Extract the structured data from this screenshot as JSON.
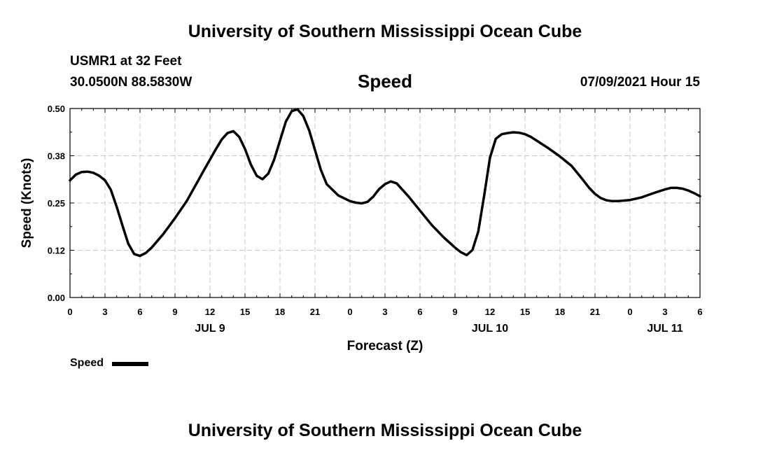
{
  "header": {
    "title_top": "University of Southern Mississippi Ocean Cube",
    "station": "USMR1 at 32 Feet",
    "coords": "30.0500N  88.5830W",
    "variable": "Speed",
    "run_time": "07/09/2021 Hour 15",
    "title_bottom": "University of Southern Mississippi Ocean Cube"
  },
  "legend": {
    "label": "Speed",
    "color": "#000000"
  },
  "chart_data": {
    "type": "line",
    "title": "Speed",
    "xlabel": "Forecast (Z)",
    "ylabel": "Speed (Knots)",
    "ylim": [
      0,
      0.5
    ],
    "xlim": [
      0,
      54
    ],
    "grid": true,
    "y_ticks": [
      "0.00",
      "0.12",
      "0.25",
      "0.38",
      "0.50"
    ],
    "x_ticks": [
      "0",
      "3",
      "6",
      "9",
      "12",
      "15",
      "18",
      "21",
      "0",
      "3",
      "6",
      "9",
      "12",
      "15",
      "18",
      "21",
      "0",
      "3",
      "6"
    ],
    "date_labels": [
      {
        "label": "JUL 9",
        "x": 12
      },
      {
        "label": "JUL 10",
        "x": 36
      },
      {
        "label": "JUL 11",
        "x": 51
      }
    ],
    "series": [
      {
        "name": "Speed",
        "color": "#000000",
        "x": [
          0,
          0.5,
          1,
          1.5,
          2,
          2.5,
          3,
          3.5,
          4,
          4.5,
          5,
          5.5,
          6,
          6.5,
          7,
          8,
          9,
          10,
          11,
          11.5,
          12,
          12.5,
          13,
          13.5,
          14,
          14.5,
          15,
          15.5,
          16,
          16.5,
          17,
          17.5,
          18,
          18.5,
          19,
          19.5,
          20,
          20.5,
          21,
          21.5,
          22,
          23,
          24,
          24.5,
          25,
          25.5,
          26,
          26.5,
          27,
          27.5,
          28,
          29,
          30,
          31,
          32,
          33,
          33.5,
          34,
          34.5,
          35,
          35.5,
          36,
          36.5,
          37,
          37.5,
          38,
          38.5,
          39,
          39.5,
          40,
          41,
          42,
          43,
          44,
          44.5,
          45,
          45.5,
          46,
          46.5,
          47,
          48,
          49,
          50,
          51,
          51.5,
          52,
          52.5,
          53,
          53.5,
          54
        ],
        "values": [
          0.31,
          0.325,
          0.332,
          0.333,
          0.33,
          0.322,
          0.31,
          0.285,
          0.24,
          0.19,
          0.142,
          0.115,
          0.11,
          0.118,
          0.132,
          0.168,
          0.21,
          0.255,
          0.31,
          0.338,
          0.365,
          0.392,
          0.418,
          0.435,
          0.44,
          0.425,
          0.393,
          0.352,
          0.322,
          0.313,
          0.328,
          0.365,
          0.415,
          0.465,
          0.493,
          0.498,
          0.48,
          0.442,
          0.39,
          0.338,
          0.3,
          0.27,
          0.255,
          0.251,
          0.249,
          0.253,
          0.267,
          0.287,
          0.3,
          0.307,
          0.302,
          0.268,
          0.23,
          0.192,
          0.16,
          0.132,
          0.12,
          0.112,
          0.126,
          0.175,
          0.27,
          0.37,
          0.42,
          0.432,
          0.435,
          0.437,
          0.436,
          0.432,
          0.425,
          0.415,
          0.395,
          0.373,
          0.348,
          0.31,
          0.29,
          0.274,
          0.263,
          0.257,
          0.255,
          0.255,
          0.258,
          0.265,
          0.276,
          0.286,
          0.29,
          0.29,
          0.288,
          0.283,
          0.276,
          0.268
        ]
      }
    ]
  }
}
